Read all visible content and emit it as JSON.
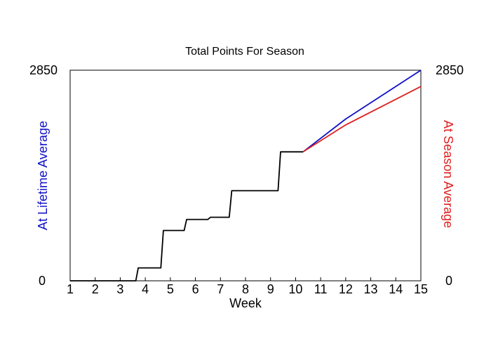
{
  "chart_data": {
    "type": "line",
    "title": "Total Points For Season",
    "xlabel": "Week",
    "ylabel_left": "At Lifetime Average",
    "ylabel_right": "At Season Average",
    "xlim": [
      1,
      15
    ],
    "ylim": [
      0,
      2850
    ],
    "x_ticks": [
      1,
      2,
      3,
      4,
      5,
      6,
      7,
      8,
      9,
      10,
      11,
      12,
      13,
      14,
      15
    ],
    "y_left_labels": {
      "min": "0",
      "max": "2850"
    },
    "y_right_labels": {
      "min": "0",
      "max": "2850"
    },
    "grid": false,
    "colors": {
      "lifetime": "#1010c8",
      "season": "#e02020",
      "actual": "#000000"
    },
    "series": [
      {
        "key": "actual",
        "points": [
          [
            1,
            0
          ],
          [
            3.62,
            0
          ],
          [
            3.72,
            175
          ],
          [
            4.62,
            175
          ],
          [
            4.72,
            680
          ],
          [
            5.55,
            680
          ],
          [
            5.65,
            830
          ],
          [
            6.5,
            830
          ],
          [
            6.6,
            860
          ],
          [
            7.35,
            860
          ],
          [
            7.45,
            1220
          ],
          [
            9.3,
            1220
          ],
          [
            9.4,
            1745
          ],
          [
            10.3,
            1745
          ]
        ]
      },
      {
        "key": "lifetime",
        "points": [
          [
            10.3,
            1745
          ],
          [
            12,
            2190
          ],
          [
            15,
            2850
          ]
        ]
      },
      {
        "key": "season",
        "points": [
          [
            10.3,
            1745
          ],
          [
            12,
            2110
          ],
          [
            15,
            2630
          ]
        ]
      }
    ]
  }
}
